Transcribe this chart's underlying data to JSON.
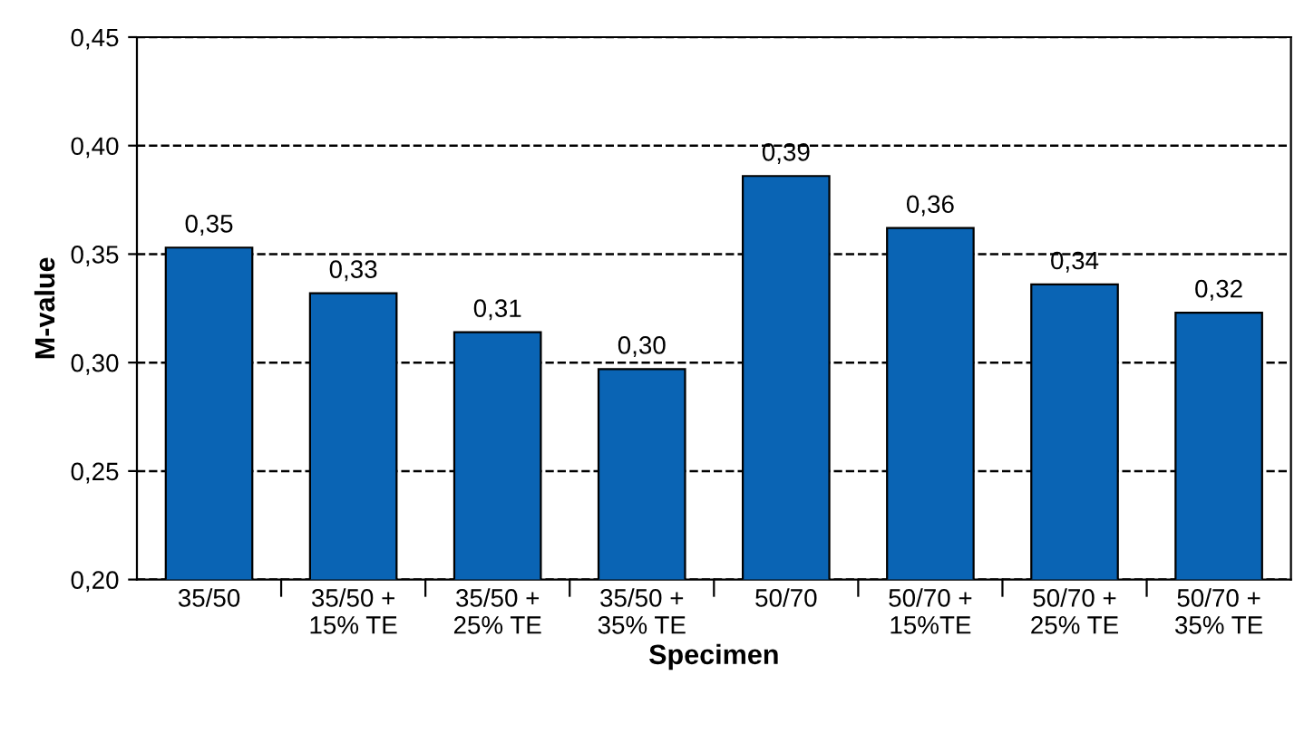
{
  "chart_data": {
    "type": "bar",
    "xlabel": "Specimen",
    "ylabel": "M-value",
    "categories": [
      "35/50",
      "35/50 +\n15% TE",
      "35/50 +\n25% TE",
      "35/50 +\n35% TE",
      "50/70",
      "50/70 +\n15%TE",
      "50/70 +\n25% TE",
      "50/70 +\n35% TE"
    ],
    "values": [
      0.353,
      0.332,
      0.314,
      0.297,
      0.386,
      0.362,
      0.336,
      0.323
    ],
    "value_labels": [
      "0,35",
      "0,33",
      "0,31",
      "0,30",
      "0,39",
      "0,36",
      "0,34",
      "0,32"
    ],
    "color": "#0a64b4",
    "ylim": [
      0.2,
      0.45
    ],
    "yticks": [
      {
        "value": 0.2,
        "label": "0,20"
      },
      {
        "value": 0.25,
        "label": "0,25"
      },
      {
        "value": 0.3,
        "label": "0,30"
      },
      {
        "value": 0.35,
        "label": "0,35"
      },
      {
        "value": 0.4,
        "label": "0,40"
      },
      {
        "value": 0.45,
        "label": "0,45"
      }
    ],
    "grid": "y",
    "line_style": "dashed"
  }
}
